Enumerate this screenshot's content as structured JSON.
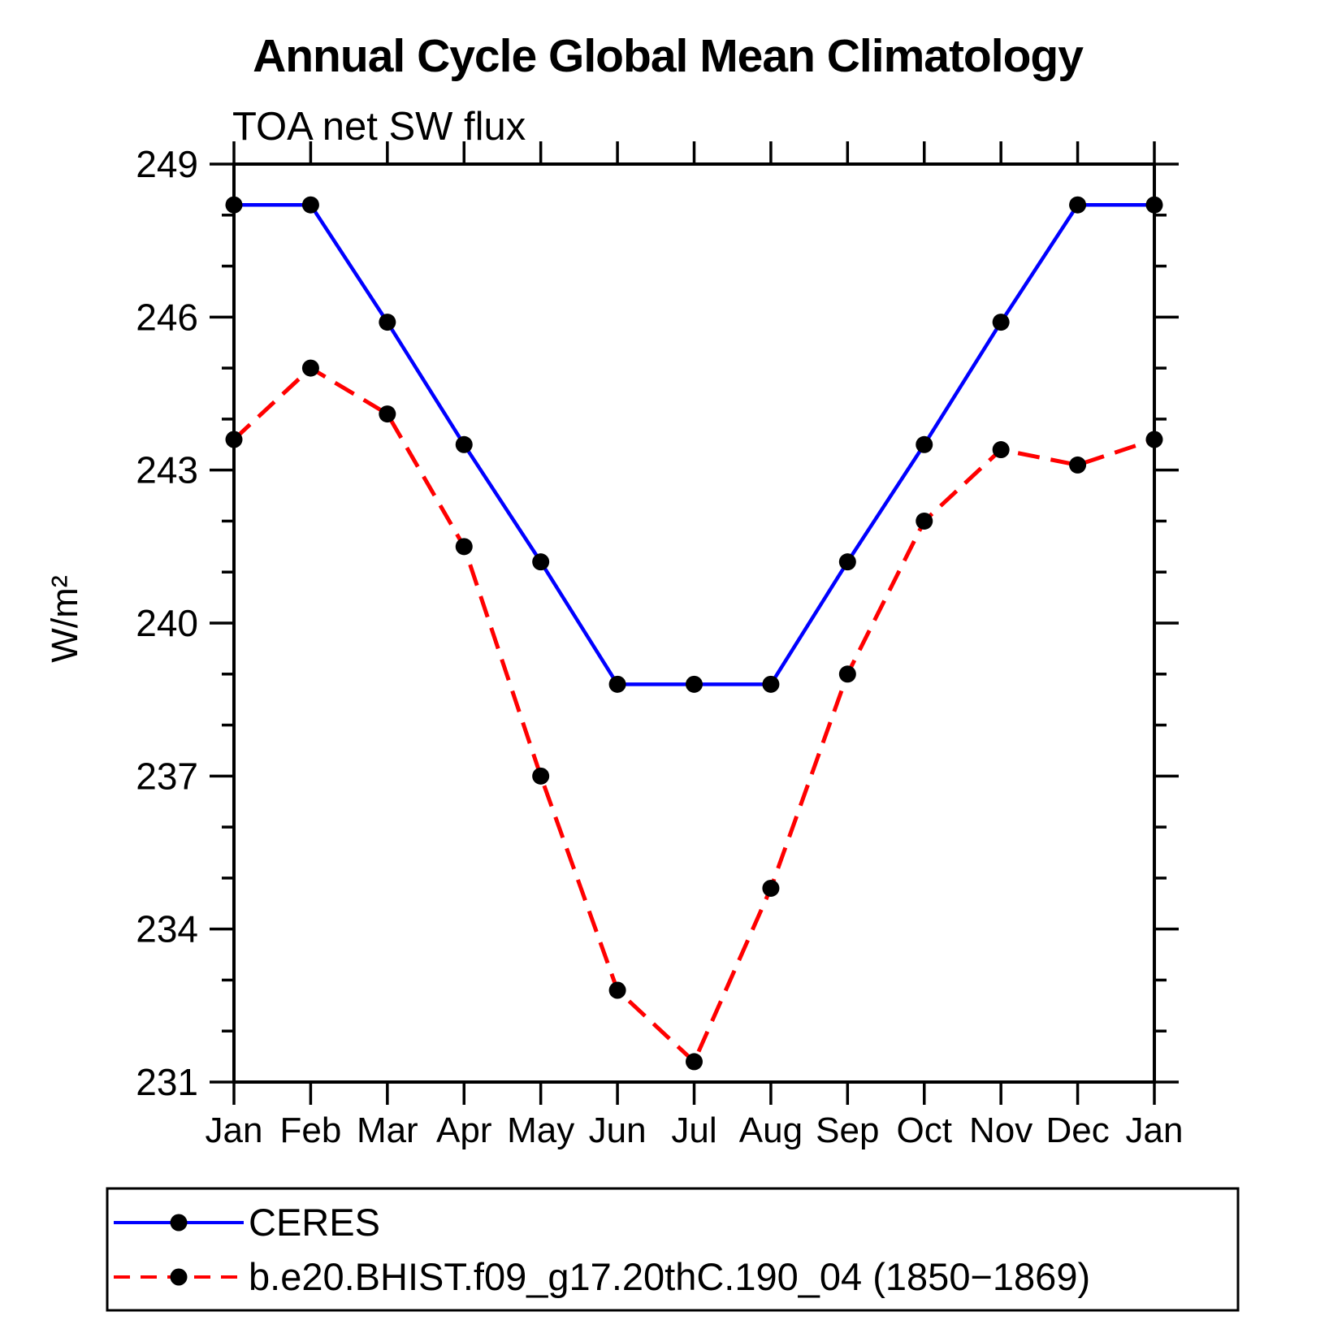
{
  "title": "Annual Cycle Global Mean Climatology",
  "subtitle": "TOA net SW flux",
  "ylabel": "W/m²",
  "chart_data": {
    "type": "line",
    "categories": [
      "Jan",
      "Feb",
      "Mar",
      "Apr",
      "May",
      "Jun",
      "Jul",
      "Aug",
      "Sep",
      "Oct",
      "Nov",
      "Dec",
      "Jan"
    ],
    "series": [
      {
        "name": "CERES",
        "color": "#0000ff",
        "line_style": "solid",
        "marker": "filled-circle",
        "marker_color": "#000000",
        "values": [
          248.2,
          248.2,
          245.9,
          243.5,
          241.2,
          238.8,
          238.8,
          238.8,
          241.2,
          243.5,
          245.9,
          248.2,
          248.2
        ]
      },
      {
        "name": "b.e20.BHIST.f09_g17.20thC.190_04 (1850−1869)",
        "color": "#ff0000",
        "line_style": "dashed",
        "marker": "filled-circle",
        "marker_color": "#000000",
        "values": [
          243.6,
          245.0,
          244.1,
          241.5,
          237.0,
          232.8,
          231.4,
          234.8,
          239.0,
          242.0,
          243.4,
          243.1,
          243.6
        ]
      }
    ],
    "xlabel": "",
    "ylabel": "W/m²",
    "ylim": [
      231,
      249
    ],
    "yticks": [
      231,
      234,
      237,
      240,
      243,
      246,
      249
    ],
    "y_minor_interval": 1,
    "grid": false,
    "legend_position": "bottom-left-box"
  },
  "legend": {
    "items": [
      {
        "label": "CERES"
      },
      {
        "label": "b.e20.BHIST.f09_g17.20thC.190_04 (1850−1869)"
      }
    ]
  }
}
